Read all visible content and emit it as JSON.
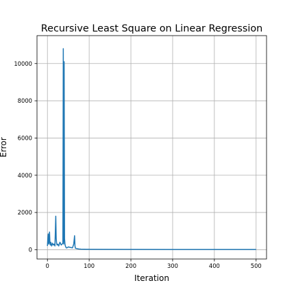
{
  "chart_data": {
    "type": "line",
    "title": "Recursive Least Square on Linear Regression",
    "xlabel": "Iteration",
    "ylabel": "Error",
    "xlim": [
      -25,
      525
    ],
    "ylim": [
      -500,
      11500
    ],
    "xticks": [
      0,
      100,
      200,
      300,
      400,
      500
    ],
    "yticks": [
      0,
      2000,
      4000,
      6000,
      8000,
      10000
    ],
    "xtick_labels": [
      "0",
      "100",
      "200",
      "300",
      "400",
      "500"
    ],
    "ytick_labels": [
      "0",
      "2000",
      "4000",
      "6000",
      "8000",
      "10000"
    ],
    "grid": true,
    "series": [
      {
        "color": "#1f77b4",
        "x": [
          0,
          1,
          2,
          3,
          4,
          5,
          6,
          7,
          8,
          9,
          10,
          12,
          14,
          16,
          18,
          20,
          21,
          22,
          23,
          25,
          27,
          30,
          33,
          35,
          37,
          38,
          39,
          40,
          41,
          42,
          43,
          44,
          45,
          47,
          50,
          55,
          60,
          63,
          65,
          66,
          67,
          70,
          75,
          80,
          100,
          200,
          300,
          400,
          500
        ],
        "y": [
          200,
          600,
          850,
          300,
          500,
          950,
          350,
          250,
          400,
          300,
          200,
          350,
          250,
          300,
          200,
          1800,
          600,
          350,
          250,
          300,
          200,
          400,
          250,
          300,
          350,
          10800,
          300,
          10100,
          600,
          300,
          200,
          150,
          100,
          100,
          150,
          120,
          100,
          300,
          750,
          200,
          80,
          60,
          40,
          30,
          20,
          15,
          12,
          10,
          10
        ]
      }
    ]
  }
}
